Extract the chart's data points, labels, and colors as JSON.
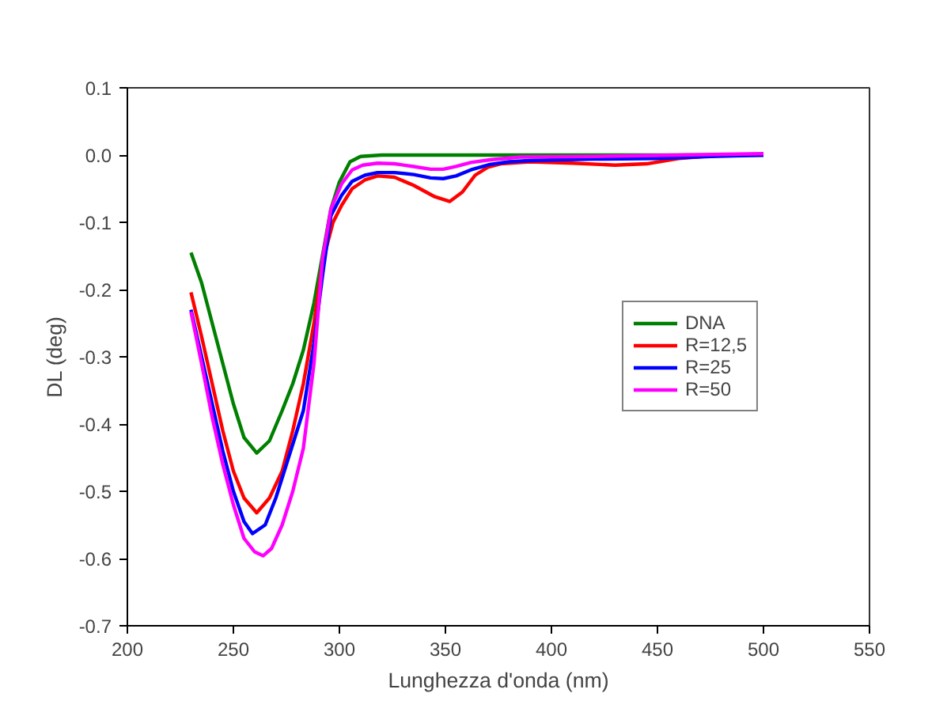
{
  "chart_data": {
    "type": "line",
    "xlabel": "Lunghezza d'onda (nm)",
    "ylabel": "DL (deg)",
    "xlim": [
      200,
      550
    ],
    "xticks": [
      200,
      250,
      300,
      350,
      400,
      450,
      500,
      550
    ],
    "ylim": [
      -0.7,
      0.1
    ],
    "yticks": [
      {
        "value": -0.7,
        "label": "-0.7"
      },
      {
        "value": -0.6,
        "label": "-0.6"
      },
      {
        "value": -0.5,
        "label": "-0.5"
      },
      {
        "value": -0.4,
        "label": "-0.4"
      },
      {
        "value": -0.3,
        "label": "-0.3"
      },
      {
        "value": -0.2,
        "label": "-0.2"
      },
      {
        "value": -0.1,
        "label": "-0.1"
      },
      {
        "value": 0,
        "label": "0.0"
      },
      {
        "value": 0.1,
        "label": "0.1"
      }
    ],
    "grid": false,
    "legend": "right",
    "line_style": "solid",
    "marker": "none",
    "series": [
      {
        "name": "DNA",
        "color": "#008000",
        "x": [
          230,
          235,
          240,
          245,
          250,
          255,
          261,
          267,
          273,
          278,
          283,
          288,
          292,
          296,
          300,
          305,
          310,
          320,
          350,
          400,
          450,
          500
        ],
        "values": [
          -0.145,
          -0.19,
          -0.25,
          -0.31,
          -0.37,
          -0.42,
          -0.443,
          -0.425,
          -0.38,
          -0.34,
          -0.29,
          -0.22,
          -0.15,
          -0.08,
          -0.04,
          -0.01,
          -0.002,
          0,
          0,
          0,
          0,
          0
        ]
      },
      {
        "name": "R=12,5",
        "color": "#ff0000",
        "x": [
          230,
          235,
          240,
          245,
          250,
          255,
          261,
          267,
          273,
          278,
          283,
          288,
          292,
          297,
          301,
          306,
          312,
          318,
          326,
          335,
          345,
          352,
          358,
          364,
          370,
          376,
          390,
          410,
          430,
          445,
          460,
          480,
          500
        ],
        "values": [
          -0.204,
          -0.27,
          -0.34,
          -0.41,
          -0.47,
          -0.51,
          -0.532,
          -0.51,
          -0.47,
          -0.41,
          -0.34,
          -0.25,
          -0.16,
          -0.1,
          -0.075,
          -0.05,
          -0.037,
          -0.031,
          -0.033,
          -0.045,
          -0.062,
          -0.069,
          -0.055,
          -0.03,
          -0.018,
          -0.013,
          -0.01,
          -0.012,
          -0.015,
          -0.013,
          -0.005,
          null,
          0
        ]
      },
      {
        "name": "R=25",
        "color": "#0000ff",
        "x": [
          230,
          235,
          240,
          245,
          250,
          255,
          259,
          265,
          270,
          275,
          280,
          283,
          288,
          292,
          296,
          301,
          306,
          312,
          318,
          326,
          335,
          343,
          349,
          355,
          362,
          371,
          380,
          391,
          420,
          450,
          475,
          500
        ],
        "values": [
          -0.23,
          -0.3,
          -0.37,
          -0.44,
          -0.5,
          -0.545,
          -0.563,
          -0.55,
          -0.51,
          -0.46,
          -0.41,
          -0.38,
          -0.28,
          -0.18,
          -0.09,
          -0.06,
          -0.039,
          -0.03,
          -0.026,
          -0.026,
          -0.029,
          -0.034,
          -0.035,
          -0.031,
          -0.022,
          -0.014,
          -0.01,
          -0.008,
          -0.006,
          -0.005,
          -0.002,
          0
        ]
      },
      {
        "name": "R=50",
        "color": "#ff00ff",
        "x": [
          230,
          235,
          240,
          245,
          250,
          255,
          260,
          264,
          268,
          273,
          278,
          283,
          288,
          292,
          296,
          301,
          306,
          311,
          318,
          326,
          335,
          343,
          349,
          355,
          362,
          371,
          385,
          420,
          460,
          500
        ],
        "values": [
          -0.233,
          -0.31,
          -0.39,
          -0.46,
          -0.52,
          -0.57,
          -0.59,
          -0.596,
          -0.585,
          -0.55,
          -0.5,
          -0.436,
          -0.31,
          -0.155,
          -0.08,
          -0.043,
          -0.022,
          -0.015,
          -0.012,
          -0.013,
          -0.017,
          -0.021,
          -0.021,
          -0.017,
          -0.011,
          -0.007,
          -0.003,
          -0.002,
          0,
          0.002
        ]
      }
    ]
  }
}
